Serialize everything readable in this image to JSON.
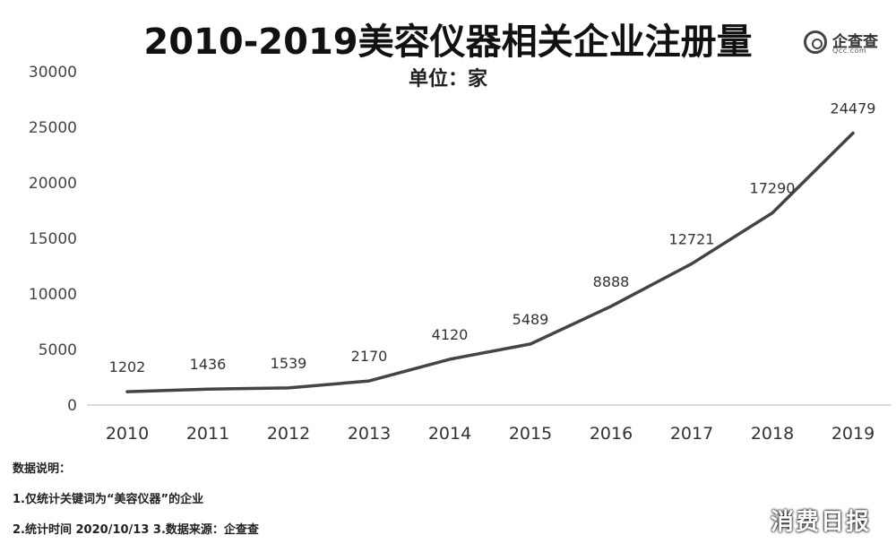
{
  "chart_data": {
    "type": "line",
    "title": "2010-2019美容仪器相关企业注册量",
    "subtitle": "单位：家",
    "xlabel": "",
    "ylabel": "",
    "x": [
      "2010",
      "2011",
      "2012",
      "2013",
      "2014",
      "2015",
      "2016",
      "2017",
      "2018",
      "2019"
    ],
    "series": [
      {
        "values": [
          1202,
          1436,
          1539,
          2170,
          4120,
          5489,
          8888,
          12721,
          17290,
          24479
        ]
      }
    ],
    "data_labels": [
      "1202",
      "1436",
      "1539",
      "2170",
      "4120",
      "5489",
      "8888",
      "12721",
      "17290",
      "24479"
    ],
    "yticks": [
      "0",
      "5000",
      "10000",
      "15000",
      "20000",
      "25000",
      "30000"
    ],
    "ylim": [
      0,
      30000
    ],
    "grid": false,
    "legend": "none",
    "line_color": "#444444"
  },
  "logo": {
    "brand": "企查查",
    "sub": "Qcc.com"
  },
  "notes": {
    "heading": "数据说明：",
    "line1": "1.仅统计关键词为“美容仪器”的企业",
    "line2": "2.统计时间 2020/10/13    3.数据来源：企查查"
  },
  "watermark": "消费日报"
}
